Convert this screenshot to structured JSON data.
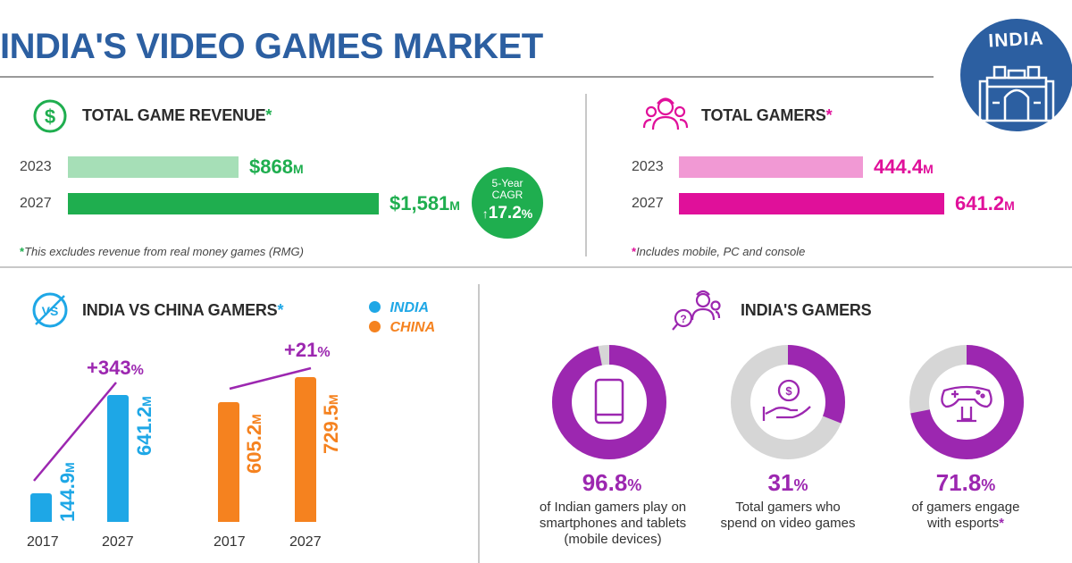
{
  "title": "INDIA'S VIDEO GAMES MARKET",
  "badge": "INDIA",
  "revenue": {
    "header": "TOTAL GAME REVENUE",
    "rows": [
      {
        "year": "2023",
        "value": "$868",
        "unit": "M",
        "amount": 868
      },
      {
        "year": "2027",
        "value": "$1,581",
        "unit": "M",
        "amount": 1581
      }
    ],
    "cagr_label": "5-Year CAGR",
    "cagr_value": "17.2",
    "cagr_unit": "%",
    "note": "This excludes revenue from real money games (RMG)"
  },
  "gamers": {
    "header": "TOTAL GAMERS",
    "rows": [
      {
        "year": "2023",
        "value": "444.4",
        "unit": "M",
        "amount": 444.4
      },
      {
        "year": "2027",
        "value": "641.2",
        "unit": "M",
        "amount": 641.2
      }
    ],
    "note": "Includes mobile, PC and console"
  },
  "compare": {
    "header": "INDIA VS CHINA GAMERS",
    "icon_text": "VS",
    "legend": [
      {
        "label": "INDIA",
        "color": "#1ea7e6"
      },
      {
        "label": "CHINA",
        "color": "#f5821f"
      }
    ],
    "india": {
      "growth": "+343",
      "v2017": "144.9",
      "v2027": "641.2",
      "unit": "M"
    },
    "china": {
      "growth": "+21",
      "v2017": "605.2",
      "v2027": "729.5",
      "unit": "M"
    },
    "years": [
      "2017",
      "2027"
    ]
  },
  "india_gamers": {
    "header": "INDIA'S GAMERS",
    "stats": [
      {
        "value": "96.8",
        "fraction": 0.968,
        "desc": "of Indian gamers play on smartphones and tablets (mobile devices)",
        "icon": "smartphone-icon"
      },
      {
        "value": "31",
        "fraction": 0.31,
        "desc": "Total gamers who spend on video games",
        "icon": "coin-hand-icon"
      },
      {
        "value": "71.8",
        "fraction": 0.718,
        "desc": "of gamers engage with esports",
        "icon": "gamepad-icon"
      }
    ]
  },
  "colors": {
    "blue_title": "#2c5fa1",
    "green": "#1fae4f",
    "green_light": "#a6dfb7",
    "magenta": "#e0109a",
    "magenta_light": "#f199d4",
    "purple": "#9c27b0",
    "india": "#1ea7e6",
    "china": "#f5821f"
  }
}
